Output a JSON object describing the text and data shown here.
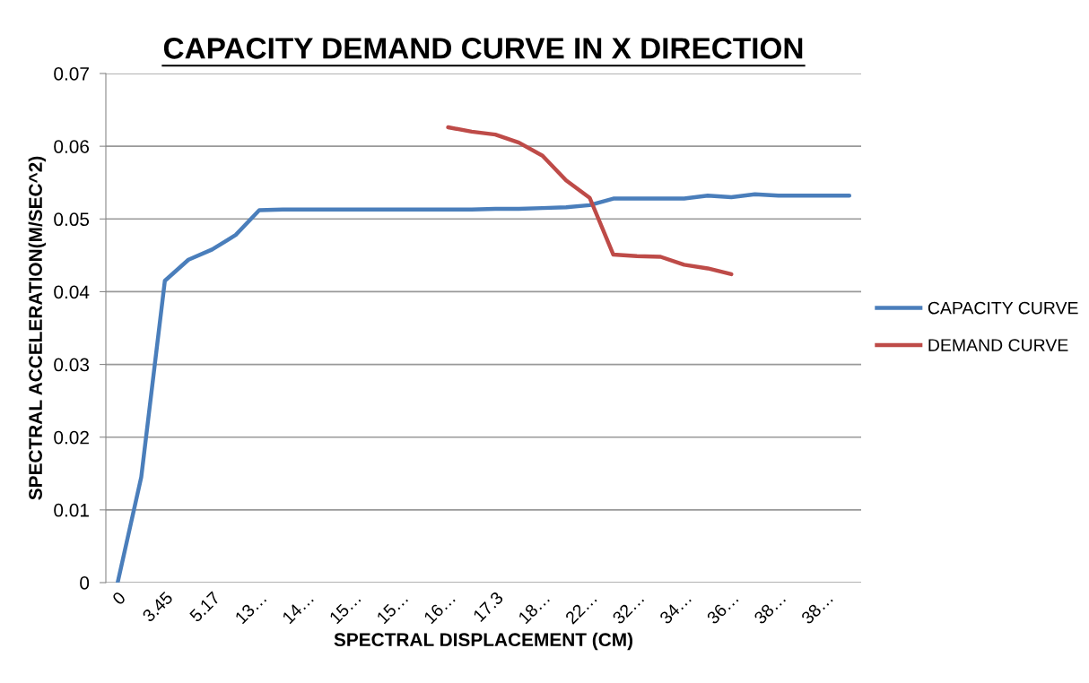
{
  "chart_data": {
    "type": "line",
    "title": "CAPACITY DEMAND CURVE IN X DIRECTION",
    "xlabel": "SPECTRAL DISPLACEMENT (CM)",
    "ylabel": "SPECTRAL ACCELERATION(M/SEC^2)",
    "categories": [
      "0",
      null,
      "3.45",
      null,
      "5.17",
      null,
      "13…",
      null,
      "14…",
      null,
      "15…",
      null,
      "15…",
      null,
      "16…",
      null,
      "17.3",
      null,
      "18…",
      null,
      "22…",
      null,
      "32…",
      null,
      "34…",
      null,
      "36…",
      null,
      "38…",
      null,
      "38…",
      null
    ],
    "series": [
      {
        "name": "CAPACITY CURVE",
        "color": "#4a7ebb",
        "values": [
          0,
          0.0145,
          0.0415,
          0.0444,
          0.0458,
          0.0478,
          0.0512,
          0.0513,
          0.0513,
          0.0513,
          0.0513,
          0.0513,
          0.0513,
          0.0513,
          0.0513,
          0.0513,
          0.0514,
          0.0514,
          0.0515,
          0.0516,
          0.0519,
          0.0528,
          0.0528,
          0.0528,
          0.0528,
          0.0532,
          0.053,
          0.0534,
          0.0532,
          0.0532,
          0.0532,
          0.0532
        ]
      },
      {
        "name": "DEMAND CURVE",
        "color": "#be4b48",
        "values": [
          null,
          null,
          null,
          null,
          null,
          null,
          null,
          null,
          null,
          null,
          null,
          null,
          null,
          null,
          0.0626,
          0.062,
          0.0616,
          0.0605,
          0.0587,
          0.0553,
          0.0529,
          0.0451,
          0.0449,
          0.0448,
          0.0437,
          0.0432,
          0.0424,
          null,
          null,
          null,
          null,
          null
        ]
      }
    ],
    "ylim": [
      0,
      0.07
    ],
    "yticks": [
      0,
      0.01,
      0.02,
      0.03,
      0.04,
      0.05,
      0.06,
      0.07
    ],
    "grid": "y",
    "legend": "right",
    "marker": "none",
    "line_style": "solid"
  }
}
